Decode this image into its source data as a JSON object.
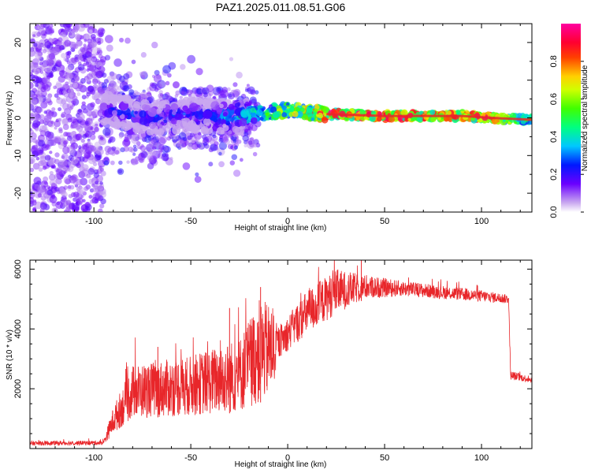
{
  "title": "PAZ1.2025.011.08.51.G06",
  "colors": {
    "snr_line": "#e8262a",
    "ridge": "#e8262a"
  },
  "chart_data": [
    {
      "type": "heatmap",
      "name": "spectrogram",
      "xlabel": "Height of straight line (km)",
      "ylabel": "Frequency (Hz)",
      "xlim": [
        -133,
        126
      ],
      "ylim": [
        -25,
        25
      ],
      "xticks": [
        -100,
        -50,
        0,
        50,
        100
      ],
      "yticks": [
        -20,
        -10,
        0,
        10,
        20
      ],
      "colorbar": {
        "label": "Normalized spectral amplitude",
        "range": [
          0,
          1
        ],
        "ticks": [
          "0.0",
          "0.2",
          "0.4",
          "0.6",
          "0.8"
        ],
        "tick_values": [
          0,
          0.2,
          0.4,
          0.6,
          0.8
        ]
      },
      "ridge": [
        {
          "x": -90,
          "f": 2.0,
          "a": 0.25
        },
        {
          "x": -70,
          "f": 0.0,
          "a": 0.3
        },
        {
          "x": -50,
          "f": 1.0,
          "a": 0.3
        },
        {
          "x": -30,
          "f": 0.0,
          "a": 0.4
        },
        {
          "x": -15,
          "f": 1.0,
          "a": 0.5
        },
        {
          "x": 0,
          "f": 2.0,
          "a": 0.7
        },
        {
          "x": 20,
          "f": 1.0,
          "a": 0.9
        },
        {
          "x": 50,
          "f": 0.5,
          "a": 0.95
        },
        {
          "x": 90,
          "f": 0.5,
          "a": 0.9
        },
        {
          "x": 105,
          "f": 0.0,
          "a": 0.85
        },
        {
          "x": 126,
          "f": -0.5,
          "a": 0.5
        }
      ]
    },
    {
      "type": "line",
      "name": "snr",
      "xlabel": "Height of straight line (km)",
      "ylabel": "SNR (10 * v/v)",
      "xlim": [
        -133,
        126
      ],
      "ylim": [
        0,
        6300
      ],
      "xticks": [
        -100,
        -50,
        0,
        50,
        100
      ],
      "yticks": [
        2000,
        4000,
        6000
      ],
      "series": [
        {
          "name": "SNR",
          "envelope": [
            {
              "x": -133,
              "base": 100,
              "spread": 150
            },
            {
              "x": -95,
              "base": 120,
              "spread": 150
            },
            {
              "x": -90,
              "base": 500,
              "spread": 900
            },
            {
              "x": -80,
              "base": 1000,
              "spread": 1800
            },
            {
              "x": -50,
              "base": 1100,
              "spread": 2000
            },
            {
              "x": -25,
              "base": 1200,
              "spread": 2500
            },
            {
              "x": -15,
              "base": 1500,
              "spread": 3500
            },
            {
              "x": -8,
              "base": 1800,
              "spread": 3000
            },
            {
              "x": -5,
              "base": 3000,
              "spread": 1000
            },
            {
              "x": 10,
              "base": 3800,
              "spread": 1500
            },
            {
              "x": 25,
              "base": 4500,
              "spread": 1500
            },
            {
              "x": 40,
              "base": 5000,
              "spread": 800
            },
            {
              "x": 60,
              "base": 5100,
              "spread": 500
            },
            {
              "x": 100,
              "base": 4900,
              "spread": 400
            },
            {
              "x": 114,
              "base": 4850,
              "spread": 300
            },
            {
              "x": 115,
              "base": 2300,
              "spread": 300
            },
            {
              "x": 126,
              "base": 2200,
              "spread": 200
            }
          ],
          "peaks": [
            {
              "x": -67,
              "y": 3400
            },
            {
              "x": -30,
              "y": 4700
            },
            {
              "x": -14,
              "y": 5400
            },
            {
              "x": 38,
              "y": 6300
            }
          ]
        }
      ]
    }
  ]
}
